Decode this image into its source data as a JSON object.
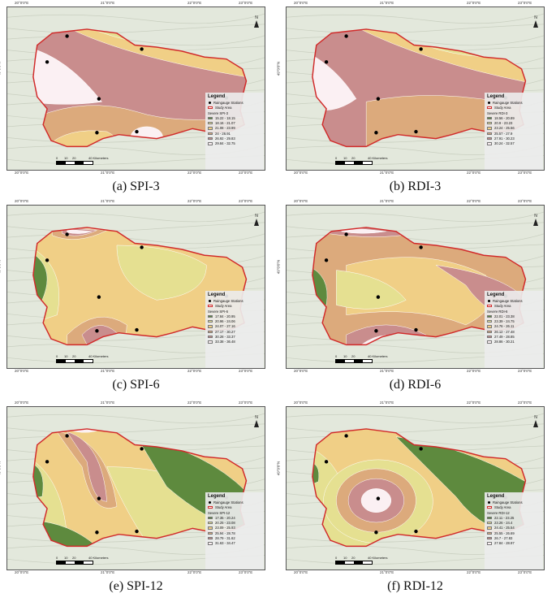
{
  "panels": [
    {
      "caption": "(a) SPI-3",
      "severe_label": "Severe SPI-3",
      "classes": [
        "15.22 - 18.15",
        "18.16 - 21.07",
        "21.08 - 23.99",
        "24 - 26.91",
        "26.92 - 29.83",
        "29.84 - 32.75"
      ]
    },
    {
      "caption": "(b) RDI-3",
      "severe_label": "Severe RDI-3",
      "classes": [
        "18.56 - 20.89",
        "20.9 - 23.23",
        "23.24 - 25.56",
        "25.57 - 27.9",
        "27.91 - 30.23",
        "30.24 - 32.57"
      ]
    },
    {
      "caption": "(c) SPI-6",
      "severe_label": "Severe SPI-6",
      "classes": [
        "17.84 - 20.95",
        "20.96 - 24.06",
        "24.07 - 27.16",
        "27.17 - 30.27",
        "30.28 - 33.37",
        "33.38 - 36.48"
      ]
    },
    {
      "caption": "(d) RDI-6",
      "severe_label": "Severe RDI-6",
      "classes": [
        "22.01 - 23.38",
        "23.39 - 24.75",
        "24.76 - 26.11",
        "26.12 - 27.48",
        "27.49 - 28.85",
        "28.86 - 30.21"
      ]
    },
    {
      "caption": "(e) SPI-12",
      "severe_label": "Severe SPI-12",
      "classes": [
        "17.35 - 20.24",
        "20.25 - 23.08",
        "23.09 - 25.93",
        "25.94 - 28.78",
        "28.79 - 31.62",
        "31.63 - 34.47"
      ]
    },
    {
      "caption": "(f) RDI-12",
      "severe_label": "Severe RDI-12",
      "classes": [
        "22.11 - 23.25",
        "23.26 - 24.4",
        "24.41 - 25.54",
        "25.55 - 26.69",
        "26.7 - 27.83",
        "27.84 - 28.97"
      ]
    }
  ],
  "legend": {
    "title": "Legend",
    "stations": "Raingauge Stations",
    "study_area": "Study Area"
  },
  "coords": {
    "lon": [
      "20°0'0\"E",
      "21°0'0\"E",
      "22°0'0\"E",
      "23°0'0\"E"
    ],
    "lat": "49°0'0\"N"
  },
  "scale": {
    "ticks": [
      "0",
      "10",
      "20",
      "40 Kilometers"
    ]
  },
  "north_label": "N",
  "colors": [
    "#5e8a3e",
    "#e5e091",
    "#f0cf86",
    "#dcaa7c",
    "#c98d8d",
    "#fbf0f3"
  ]
}
